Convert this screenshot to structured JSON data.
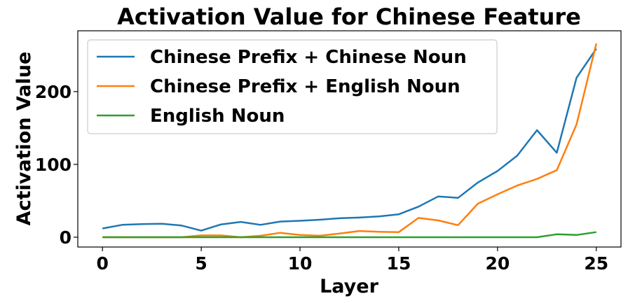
{
  "chart_data": {
    "type": "line",
    "title": "Activation Value for Chinese Feature",
    "xlabel": "Layer",
    "ylabel": "Activation Value",
    "xlim": [
      -1.25,
      26.25
    ],
    "ylim": [
      -13.5,
      283.5
    ],
    "xticks": [
      0,
      5,
      10,
      15,
      20,
      25
    ],
    "yticks": [
      0,
      100,
      200
    ],
    "grid": false,
    "legend_position": "upper-left",
    "x": [
      0,
      1,
      2,
      3,
      4,
      5,
      6,
      7,
      8,
      9,
      10,
      11,
      12,
      13,
      14,
      15,
      16,
      17,
      18,
      19,
      20,
      21,
      22,
      23,
      24,
      25
    ],
    "series": [
      {
        "name": "Chinese Prefix + Chinese Noun",
        "color": "#1f77b4",
        "values": [
          12,
          17,
          18,
          18.5,
          16,
          9,
          17.5,
          21,
          17,
          21.5,
          22.5,
          24,
          26,
          27,
          28.5,
          31.5,
          42,
          56,
          54,
          75,
          91,
          112,
          147,
          116,
          219,
          259
        ]
      },
      {
        "name": "Chinese Prefix + English Noun",
        "color": "#ff7f0e",
        "values": [
          0,
          0,
          0,
          0,
          0,
          2.5,
          2.5,
          0,
          2,
          6,
          3,
          2,
          5,
          8.5,
          7.5,
          7,
          26.5,
          23,
          16.5,
          46,
          59,
          71,
          80,
          92,
          155,
          266
        ]
      },
      {
        "name": "English Noun",
        "color": "#2ca02c",
        "values": [
          0,
          0,
          0,
          0,
          0,
          0,
          0,
          0,
          0,
          0,
          0,
          0,
          0,
          0,
          0,
          0,
          0,
          0,
          0,
          0,
          0,
          0,
          0,
          4,
          3,
          7
        ]
      }
    ]
  }
}
